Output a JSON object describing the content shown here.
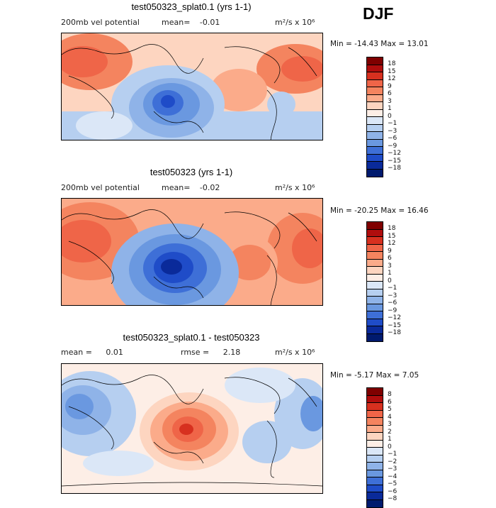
{
  "season": "DJF",
  "units_text": "m²/s x 10⁶",
  "panels": [
    {
      "title": "test050323_splat0.1 (yrs 1-1)",
      "variable": "200mb vel potential",
      "mean_label": "mean=",
      "mean_value": "-0.01",
      "min_max": "Min = -14.43  Max =   13.01",
      "levels": [
        "18",
        "15",
        "12",
        "9",
        "6",
        "3",
        "1",
        "0",
        "−1",
        "−3",
        "−6",
        "−9",
        "−12",
        "−15",
        "−18"
      ]
    },
    {
      "title": "test050323 (yrs 1-1)",
      "variable": "200mb vel potential",
      "mean_label": "mean=",
      "mean_value": "-0.02",
      "min_max": "Min = -20.25  Max =   16.46",
      "levels": [
        "18",
        "15",
        "12",
        "9",
        "6",
        "3",
        "1",
        "0",
        "−1",
        "−3",
        "−6",
        "−9",
        "−12",
        "−15",
        "−18"
      ]
    },
    {
      "title": "test050323_splat0.1 - test050323",
      "mean_label": "mean =",
      "mean_value": "0.01",
      "rmse_label": "rmse =",
      "rmse_value": "2.18",
      "min_max": "Min = -5.17  Max =   7.05",
      "levels": [
        "8",
        "6",
        "5",
        "4",
        "3",
        "2",
        "1",
        "0",
        "−1",
        "−2",
        "−3",
        "−4",
        "−5",
        "−6",
        "−8"
      ]
    }
  ],
  "colors": {
    "scale": [
      "#7f0000",
      "#b00d0d",
      "#d7301f",
      "#ef6548",
      "#f4845f",
      "#fbab8a",
      "#fdd5c0",
      "#fdeee6",
      "#dbe7f7",
      "#b6cff0",
      "#8fb3e8",
      "#6a98e0",
      "#3e6fd7",
      "#1f4cc8",
      "#0a2a9a",
      "#001a6e"
    ]
  }
}
